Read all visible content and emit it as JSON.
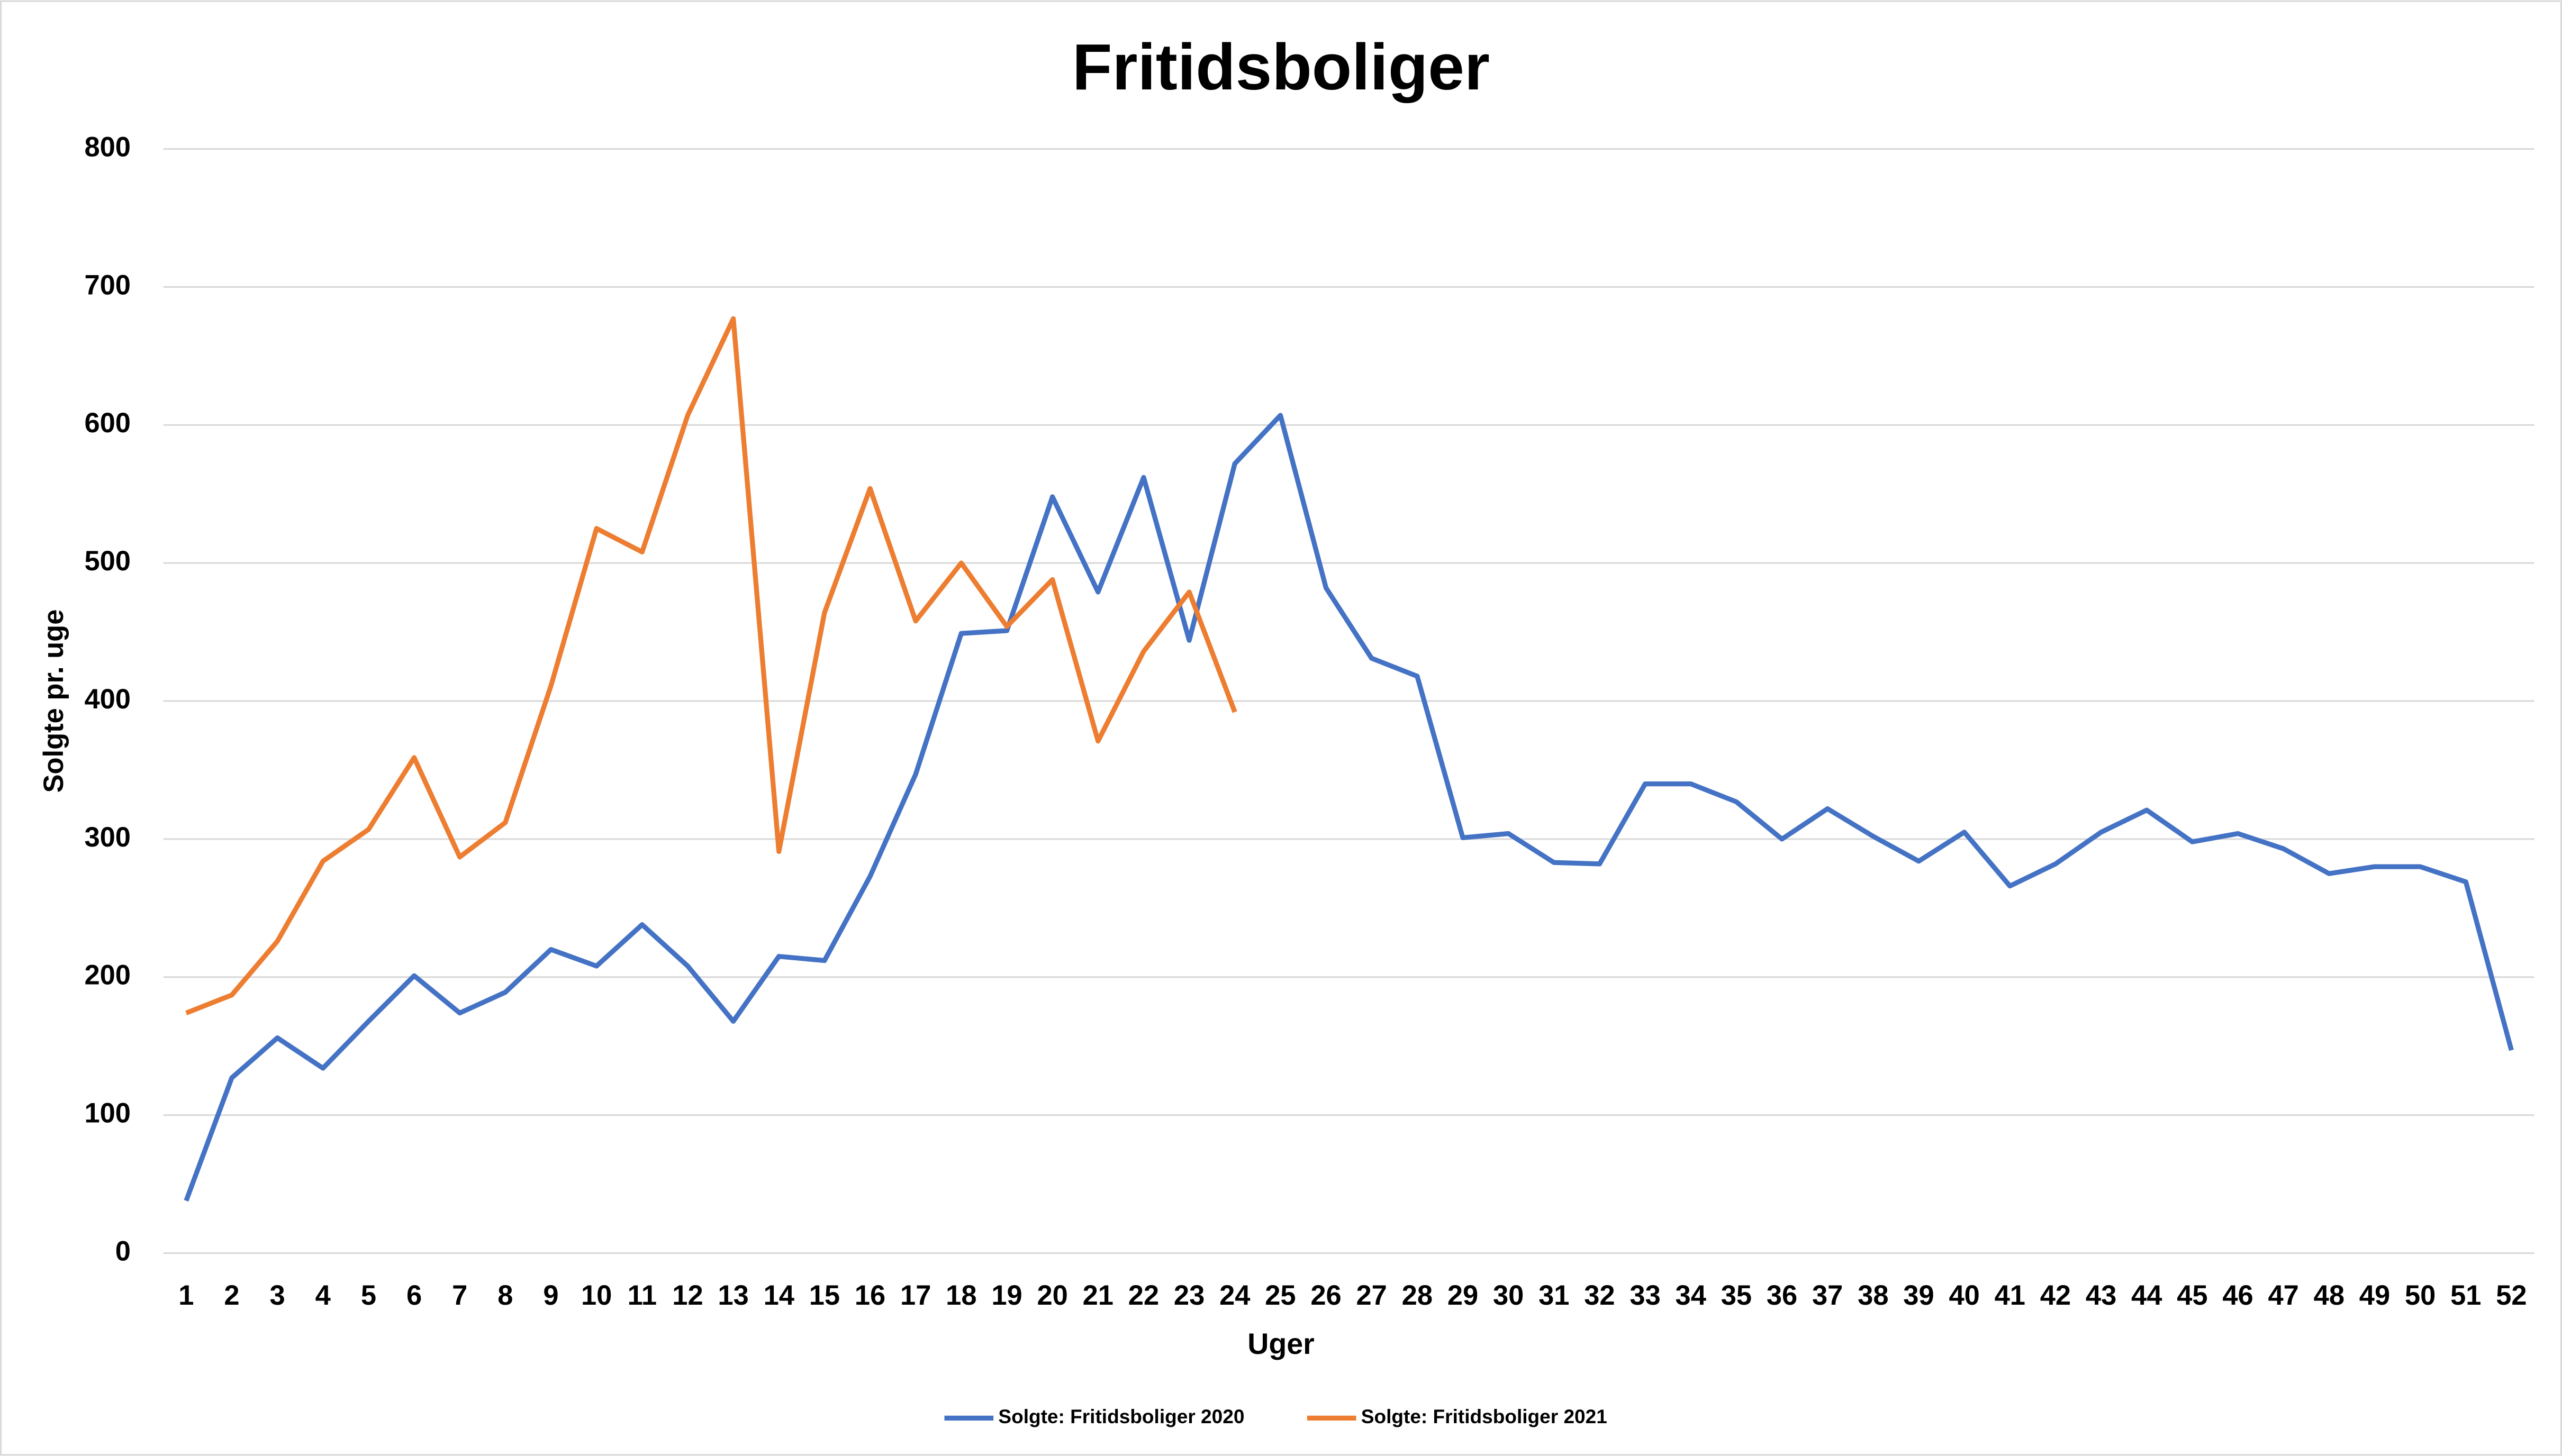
{
  "chart_data": {
    "type": "line",
    "title": "Fritidsboliger",
    "x_label": "Uger",
    "y_label": "Solgte pr. uge",
    "categories": [
      1,
      2,
      3,
      4,
      5,
      6,
      7,
      8,
      9,
      10,
      11,
      12,
      13,
      14,
      15,
      16,
      17,
      18,
      19,
      20,
      21,
      22,
      23,
      24,
      25,
      26,
      27,
      28,
      29,
      30,
      31,
      32,
      33,
      34,
      35,
      36,
      37,
      38,
      39,
      40,
      41,
      42,
      43,
      44,
      45,
      46,
      47,
      48,
      49,
      50,
      51,
      52
    ],
    "series": [
      {
        "name": "Solgte: Fritidsboliger 2020",
        "color": "#4472c4",
        "values": [
          38,
          127,
          156,
          134,
          168,
          201,
          174,
          189,
          220,
          208,
          238,
          208,
          168,
          215,
          212,
          273,
          347,
          449,
          451,
          548,
          479,
          562,
          444,
          572,
          607,
          482,
          431,
          418,
          301,
          304,
          283,
          282,
          340,
          340,
          327,
          300,
          322,
          302,
          284,
          305,
          266,
          282,
          305,
          321,
          298,
          304,
          293,
          275,
          280,
          280,
          269,
          147
        ]
      },
      {
        "name": "Solgte: Fritidsboliger 2021",
        "color": "#ed7d31",
        "values": [
          174,
          187,
          226,
          284,
          307,
          359,
          287,
          312,
          411,
          525,
          508,
          607,
          677,
          291,
          464,
          554,
          458,
          500,
          454,
          488,
          371,
          436,
          479,
          392,
          null,
          null,
          null,
          null,
          null,
          null,
          null,
          null,
          null,
          null,
          null,
          null,
          null,
          null,
          null,
          null,
          null,
          null,
          null,
          null,
          null,
          null,
          null,
          null,
          null,
          null,
          null,
          null
        ]
      }
    ],
    "ylim": [
      0,
      800
    ],
    "yticks": [
      0,
      100,
      200,
      300,
      400,
      500,
      600,
      700,
      800
    ],
    "grid": true,
    "legend": "bottom"
  }
}
